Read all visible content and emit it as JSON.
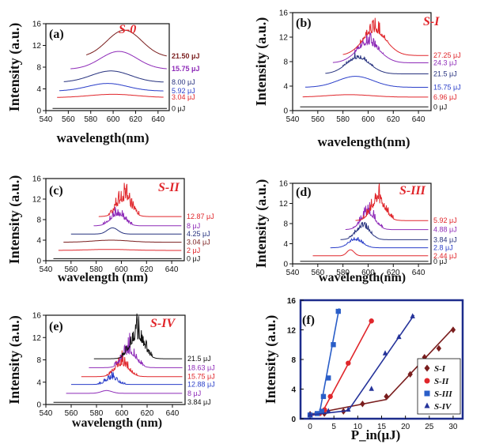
{
  "chart_data": [
    {
      "panel_label": "(a)",
      "sample_label": "S-0",
      "type": "line",
      "xlabel": "wavelength(nm)",
      "ylabel": "Intensity (a.u.)",
      "xlim": [
        540,
        650
      ],
      "ylim": [
        0,
        16
      ],
      "xticks": [
        "540",
        "560",
        "580",
        "600",
        "620",
        "640"
      ],
      "yticks": [
        "0",
        "4",
        "8",
        "12",
        "16"
      ],
      "series": [
        {
          "name": "0 μJ",
          "color": "#111111",
          "offset": 0.4,
          "start": 546,
          "end": 648,
          "profile": "gauss",
          "center": 600,
          "width": 30,
          "amp": 0
        },
        {
          "name": "3.04 μJ",
          "color": "#e0262b",
          "offset": 2.4,
          "start": 550,
          "end": 645,
          "profile": "gauss",
          "center": 600,
          "width": 30,
          "amp": 0.6
        },
        {
          "name": "5.92 μJ",
          "color": "#2a3ec9",
          "offset": 3.6,
          "start": 552,
          "end": 645,
          "profile": "gauss",
          "center": 595,
          "width": 25,
          "amp": 1.4
        },
        {
          "name": "8.00 μJ",
          "color": "#27327f",
          "offset": 5.2,
          "start": 556,
          "end": 645,
          "profile": "gauss",
          "center": 598,
          "width": 25,
          "amp": 2.1
        },
        {
          "name": "15.75 μJ",
          "color": "#8e2bb8",
          "offset": 7.6,
          "start": 562,
          "end": 648,
          "profile": "gauss",
          "center": 605,
          "width": 23,
          "amp": 3.3
        },
        {
          "name": "21.50 μJ",
          "color": "#7a1e1e",
          "offset": 9.8,
          "start": 576,
          "end": 648,
          "profile": "gauss",
          "center": 610,
          "width": 22,
          "amp": 5.0
        }
      ]
    },
    {
      "panel_label": "(b)",
      "sample_label": "S-I",
      "type": "line",
      "xlabel": "wavelength(nm)",
      "ylabel": "Intensity (a.u.)",
      "xlim": [
        540,
        650
      ],
      "ylim": [
        0,
        16
      ],
      "xticks": [
        "540",
        "560",
        "580",
        "600",
        "620",
        "640"
      ],
      "yticks": [
        "0",
        "4",
        "8",
        "12",
        "16"
      ],
      "series": [
        {
          "name": "0 μJ",
          "color": "#111111",
          "offset": 0.6,
          "start": 546,
          "end": 648,
          "profile": "gauss",
          "center": 600,
          "width": 30,
          "amp": 0
        },
        {
          "name": "6.96 μJ",
          "color": "#e0262b",
          "offset": 2.2,
          "start": 548,
          "end": 648,
          "profile": "gauss",
          "center": 585,
          "width": 25,
          "amp": 0.4
        },
        {
          "name": "15.75 μJ",
          "color": "#2a3ec9",
          "offset": 3.8,
          "start": 550,
          "end": 648,
          "profile": "gauss",
          "center": 590,
          "width": 20,
          "amp": 1.8
        },
        {
          "name": "21.5 μJ",
          "color": "#27327f",
          "offset": 6.0,
          "start": 566,
          "end": 648,
          "profile": "spikes",
          "center": 592,
          "width": 14,
          "amp": 2.5,
          "spike_center": 592,
          "spike_amp": 1.8
        },
        {
          "name": "24.3 μJ",
          "color": "#8e2bb8",
          "offset": 7.8,
          "start": 572,
          "end": 648,
          "profile": "spikes",
          "center": 600,
          "width": 14,
          "amp": 3.0,
          "spike_center": 600,
          "spike_amp": 3.0
        },
        {
          "name": "27.25 μJ",
          "color": "#e0262b",
          "offset": 9.0,
          "start": 580,
          "end": 648,
          "profile": "spikes",
          "center": 605,
          "width": 14,
          "amp": 3.8,
          "spike_center": 605,
          "spike_amp": 4.0
        }
      ]
    },
    {
      "panel_label": "(c)",
      "sample_label": "S-II",
      "type": "line",
      "xlabel": "wavelength (nm)",
      "ylabel": "Intensity (a.u.)",
      "xlim": [
        540,
        650
      ],
      "ylim": [
        0,
        16
      ],
      "xticks": [
        "540",
        "560",
        "580",
        "600",
        "620",
        "640"
      ],
      "yticks": [
        "0",
        "4",
        "8",
        "12",
        "16"
      ],
      "series": [
        {
          "name": "0 μJ",
          "color": "#111111",
          "offset": 0.4,
          "start": 546,
          "end": 648,
          "profile": "gauss",
          "center": 600,
          "width": 30,
          "amp": 0
        },
        {
          "name": "2 μJ",
          "color": "#e0262b",
          "offset": 2.0,
          "start": 550,
          "end": 648,
          "profile": "gauss",
          "center": 590,
          "width": 25,
          "amp": 0.2
        },
        {
          "name": "3.04 μJ",
          "color": "#7a1e1e",
          "offset": 3.6,
          "start": 554,
          "end": 648,
          "profile": "gauss",
          "center": 592,
          "width": 20,
          "amp": 0.4
        },
        {
          "name": "4.25 μJ",
          "color": "#27327f",
          "offset": 5.2,
          "start": 560,
          "end": 648,
          "profile": "gauss",
          "center": 593,
          "width": 6,
          "amp": 1.2
        },
        {
          "name": "8 μJ",
          "color": "#8e2bb8",
          "offset": 6.8,
          "start": 578,
          "end": 648,
          "profile": "spikes",
          "center": 597,
          "width": 8,
          "amp": 2.0,
          "spike_center": 597,
          "spike_amp": 3.0
        },
        {
          "name": "12.87 μJ",
          "color": "#e0262b",
          "offset": 8.6,
          "start": 582,
          "end": 648,
          "profile": "spikes",
          "center": 602,
          "width": 8,
          "amp": 3.0,
          "spike_center": 602,
          "spike_amp": 6.0
        }
      ]
    },
    {
      "panel_label": "(d)",
      "sample_label": "S-III",
      "type": "line",
      "xlabel": "wavelength(nm)",
      "ylabel": "Intensity (a.u.)",
      "xlim": [
        540,
        650
      ],
      "ylim": [
        0,
        16
      ],
      "xticks": [
        "540",
        "560",
        "580",
        "600",
        "620",
        "640"
      ],
      "yticks": [
        "0",
        "4",
        "8",
        "12",
        "16"
      ],
      "series": [
        {
          "name": "0 μJ",
          "color": "#111111",
          "offset": 0.5,
          "start": 546,
          "end": 648,
          "profile": "gauss",
          "center": 600,
          "width": 30,
          "amp": 0
        },
        {
          "name": "2.44 μJ",
          "color": "#e0262b",
          "offset": 1.6,
          "start": 556,
          "end": 648,
          "profile": "gauss",
          "center": 586,
          "width": 4,
          "amp": 1.2
        },
        {
          "name": "2.8 μJ",
          "color": "#2a3ec9",
          "offset": 3.2,
          "start": 570,
          "end": 648,
          "profile": "spikes",
          "center": 590,
          "width": 8,
          "amp": 1.5,
          "spike_center": 590,
          "spike_amp": 1.0
        },
        {
          "name": "3.84 μJ",
          "color": "#27327f",
          "offset": 4.8,
          "start": 578,
          "end": 648,
          "profile": "spikes",
          "center": 596,
          "width": 8,
          "amp": 2.5,
          "spike_center": 596,
          "spike_amp": 2.0
        },
        {
          "name": "4.88 μJ",
          "color": "#8e2bb8",
          "offset": 6.8,
          "start": 582,
          "end": 648,
          "profile": "spikes",
          "center": 600,
          "width": 8,
          "amp": 3.0,
          "spike_center": 600,
          "spike_amp": 3.5
        },
        {
          "name": "5.92 μJ",
          "color": "#e0262b",
          "offset": 8.6,
          "start": 590,
          "end": 648,
          "profile": "spikes",
          "center": 608,
          "width": 8,
          "amp": 3.5,
          "spike_center": 608,
          "spike_amp": 6.0
        }
      ]
    },
    {
      "panel_label": "(e)",
      "sample_label": "S-IV",
      "type": "line",
      "xlabel": "wavelength (nm)",
      "ylabel": "Intensity (a.u.)",
      "xlim": [
        540,
        650
      ],
      "ylim": [
        0,
        16
      ],
      "xticks": [
        "540",
        "560",
        "580",
        "600",
        "620",
        "640"
      ],
      "yticks": [
        "0",
        "4",
        "8",
        "12",
        "16"
      ],
      "series": [
        {
          "name": "3.84 μJ",
          "color": "#111111",
          "offset": 0.4,
          "start": 546,
          "end": 648,
          "profile": "gauss",
          "center": 600,
          "width": 30,
          "amp": 0
        },
        {
          "name": "8 μJ",
          "color": "#8e2bb8",
          "offset": 2.0,
          "start": 556,
          "end": 648,
          "profile": "gauss",
          "center": 588,
          "width": 6,
          "amp": 0.5
        },
        {
          "name": "12.88 μJ",
          "color": "#2a3ec9",
          "offset": 3.6,
          "start": 560,
          "end": 648,
          "profile": "spikes",
          "center": 592,
          "width": 6,
          "amp": 1.0,
          "spike_center": 592,
          "spike_amp": 1.5
        },
        {
          "name": "15.75 μJ",
          "color": "#e0262b",
          "offset": 5.0,
          "start": 568,
          "end": 648,
          "profile": "spikes",
          "center": 600,
          "width": 8,
          "amp": 2.0,
          "spike_center": 600,
          "spike_amp": 3.0
        },
        {
          "name": "18.63 μJ",
          "color": "#8e2bb8",
          "offset": 6.6,
          "start": 574,
          "end": 648,
          "profile": "spikes",
          "center": 606,
          "width": 8,
          "amp": 2.5,
          "spike_center": 606,
          "spike_amp": 4.0
        },
        {
          "name": "21.5 μJ",
          "color": "#111111",
          "offset": 8.2,
          "start": 578,
          "end": 648,
          "profile": "spikes",
          "center": 612,
          "width": 8,
          "amp": 3.5,
          "spike_center": 612,
          "spike_amp": 6.0
        }
      ]
    },
    {
      "panel_label": "(f)",
      "type": "scatter",
      "xlabel": "P_in(μJ)",
      "ylabel": "Intensity (a.u.)",
      "xlim": [
        -2,
        32
      ],
      "ylim": [
        0,
        16
      ],
      "xticks": [
        "0",
        "5",
        "10",
        "15",
        "20",
        "25",
        "30"
      ],
      "yticks": [
        "0",
        "4",
        "8",
        "12",
        "16"
      ],
      "series": [
        {
          "name": "S-I",
          "color": "#7a1e1e",
          "marker": "diamond",
          "x": [
            0,
            3,
            7,
            11,
            16,
            21,
            24,
            27,
            30
          ],
          "y": [
            0.6,
            0.7,
            1.0,
            2.0,
            3.0,
            6.0,
            8.3,
            9.5,
            12.0
          ],
          "fit": [
            [
              0,
              0.6
            ],
            [
              16,
              2.6
            ],
            [
              30,
              12.2
            ]
          ]
        },
        {
          "name": "S-II",
          "color": "#e0262b",
          "marker": "circle",
          "x": [
            0,
            2,
            3.04,
            4.25,
            8,
            12.87
          ],
          "y": [
            0.5,
            0.7,
            1.2,
            3.0,
            7.5,
            13.2
          ],
          "fit": [
            [
              0,
              0.4
            ],
            [
              2.5,
              0.8
            ],
            [
              13,
              13.4
            ]
          ]
        },
        {
          "name": "S-III",
          "color": "#2a5ec8",
          "marker": "square",
          "x": [
            0,
            1.5,
            2.44,
            2.8,
            3.84,
            4.88,
            5.92
          ],
          "y": [
            0.5,
            0.7,
            1.0,
            3.0,
            5.5,
            10.0,
            14.5
          ],
          "fit": [
            [
              0,
              0.5
            ],
            [
              2,
              0.8
            ],
            [
              6.1,
              14.9
            ]
          ]
        },
        {
          "name": "S-IV",
          "color": "#25339a",
          "marker": "triangle",
          "x": [
            0,
            3.84,
            8,
            12.88,
            15.75,
            18.63,
            21.5
          ],
          "y": [
            0.5,
            1.0,
            1.2,
            4.0,
            8.8,
            11.0,
            13.8
          ],
          "fit": [
            [
              0,
              0.5
            ],
            [
              8,
              1.1
            ],
            [
              21.8,
              14.0
            ]
          ]
        }
      ]
    }
  ]
}
